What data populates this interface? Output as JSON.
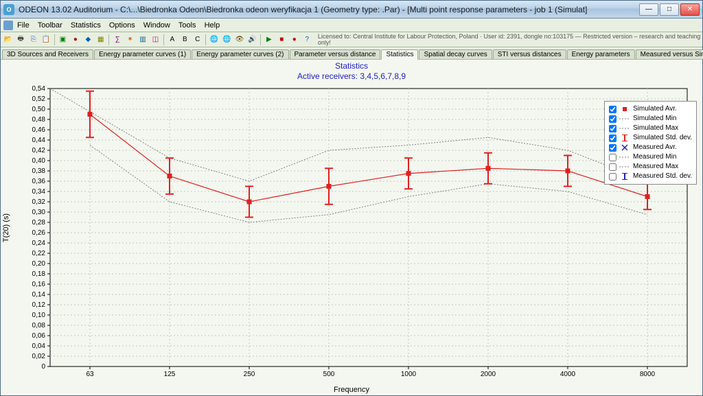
{
  "window": {
    "title": "ODEON 13.02 Auditorium  -  C:\\...\\Biedronka Odeon\\Biedronka odeon weryfikacja 1     (Geometry type: .Par) - [Multi point response parameters - job 1 (Simulat]"
  },
  "menu": {
    "items": [
      "File",
      "Toolbar",
      "Statistics",
      "Options",
      "Window",
      "Tools",
      "Help"
    ]
  },
  "license_text": "Licensed to: Central Institute for Labour Protection, Poland · User id: 2391, dongle no:103175 — Restricted version – research and teaching only!",
  "tabs": {
    "items": [
      "3D Sources and Receivers",
      "Energy parameter curves (1)",
      "Energy parameter curves (2)",
      "Parameter versus distance",
      "Statistics",
      "Spatial decay curves",
      "STI versus distances",
      "Energy parameters",
      "Measured versus Simulated"
    ],
    "active_index": 4
  },
  "chart": {
    "title_line1": "Statistics",
    "title_line2": "Active receivers: 3,4,5,6,7,8,9",
    "x_label": "Frequency",
    "y_label": "T(20) (s)",
    "ylim": [
      0,
      0.54
    ],
    "ytick_step": 0.02,
    "x_categories": [
      "63",
      "125",
      "250",
      "500",
      "1000",
      "2000",
      "4000",
      "8000"
    ],
    "background_color": "#f4f7f0",
    "grid_color": "#c0c8b8",
    "axis_color": "#000000",
    "series": {
      "sim_avr": {
        "values": [
          0.49,
          0.37,
          0.32,
          0.35,
          0.375,
          0.385,
          0.38,
          0.33
        ],
        "color": "#e02020",
        "marker": "square",
        "marker_size": 6
      },
      "sim_min": {
        "values": [
          0.43,
          0.32,
          0.28,
          0.295,
          0.33,
          0.355,
          0.34,
          0.295
        ],
        "color": "#808080",
        "dash": "2,2"
      },
      "sim_max": {
        "values": [
          null,
          0.405,
          0.36,
          0.42,
          0.43,
          0.445,
          0.42,
          0.36
        ],
        "color": "#808080",
        "dash": "2,2"
      },
      "sim_std": {
        "low": [
          0.445,
          0.335,
          0.29,
          0.315,
          0.345,
          0.355,
          0.35,
          0.305
        ],
        "high": [
          0.535,
          0.405,
          0.35,
          0.385,
          0.405,
          0.415,
          0.41,
          0.355
        ],
        "color": "#e02020",
        "width": 2,
        "cap": 6
      }
    },
    "legend": [
      {
        "label": "Simulated Avr.",
        "checked": true,
        "symbol": "sq-red"
      },
      {
        "label": "Simulated Min",
        "checked": true,
        "symbol": "line-gray"
      },
      {
        "label": "Simulated Max",
        "checked": true,
        "symbol": "line-gray"
      },
      {
        "label": "Simulated Std. dev.",
        "checked": true,
        "symbol": "err-red"
      },
      {
        "label": "Measured Avr.",
        "checked": true,
        "symbol": "x-blue"
      },
      {
        "label": "Measured Min",
        "checked": false,
        "symbol": "line-gray"
      },
      {
        "label": "Measured Max",
        "checked": false,
        "symbol": "line-gray"
      },
      {
        "label": "Measured Std. dev.",
        "checked": false,
        "symbol": "err-blue"
      }
    ]
  }
}
